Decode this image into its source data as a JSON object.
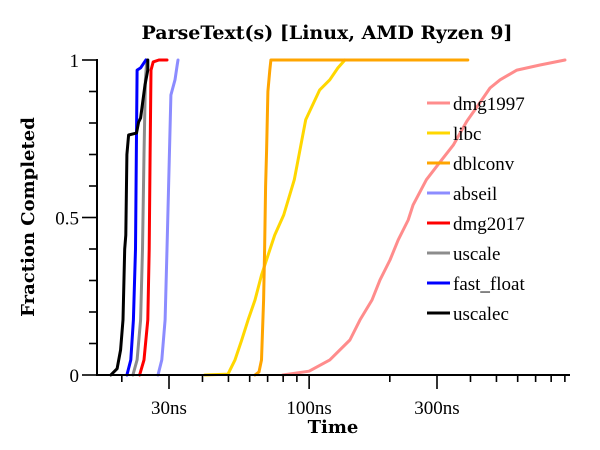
{
  "chart_data": {
    "type": "line",
    "title": "ParseText(s) [Linux, AMD Ryzen 9]",
    "xlabel": "Time",
    "ylabel": "Fraction Completed",
    "xscale": "log",
    "xunit": "ns",
    "xlim": [
      16.2,
      932
    ],
    "ylim": [
      0,
      1
    ],
    "x_major_ticks": [
      {
        "value": 30,
        "label": "30ns"
      },
      {
        "value": 100,
        "label": "100ns"
      },
      {
        "value": 300,
        "label": "300ns"
      }
    ],
    "x_minor_ticks": [
      20,
      40,
      50,
      60,
      70,
      80,
      90,
      200,
      400,
      500,
      600,
      700,
      800,
      900
    ],
    "y_major_ticks": [
      {
        "value": 0,
        "label": "0"
      },
      {
        "value": 0.5,
        "label": "0.5"
      },
      {
        "value": 1,
        "label": "1"
      }
    ],
    "y_minor_ticks": [
      0.1,
      0.2,
      0.3,
      0.4,
      0.6,
      0.7,
      0.8,
      0.9
    ],
    "grid": false,
    "legend_position": "right",
    "series": [
      {
        "name": "dmg1997",
        "color": "#ff8c8c",
        "points": [
          [
            79.7,
            0
          ],
          [
            100,
            0.012
          ],
          [
            119.4,
            0.048
          ],
          [
            142,
            0.111
          ],
          [
            154.8,
            0.175
          ],
          [
            171.6,
            0.238
          ],
          [
            183.8,
            0.302
          ],
          [
            200.4,
            0.365
          ],
          [
            214.9,
            0.429
          ],
          [
            234.2,
            0.492
          ],
          [
            244.4,
            0.54
          ],
          [
            274,
            0.62
          ],
          [
            307.8,
            0.676
          ],
          [
            345,
            0.73
          ],
          [
            388,
            0.806
          ],
          [
            430,
            0.86
          ],
          [
            473,
            0.911
          ],
          [
            516,
            0.937
          ],
          [
            596,
            0.968
          ],
          [
            727,
            0.984
          ],
          [
            901,
            1
          ]
        ]
      },
      {
        "name": "libc",
        "color": "#ffd700",
        "points": [
          [
            40.8,
            0
          ],
          [
            49.8,
            0.003
          ],
          [
            52.9,
            0.048
          ],
          [
            56,
            0.11
          ],
          [
            59.2,
            0.175
          ],
          [
            62.8,
            0.238
          ],
          [
            66.4,
            0.317
          ],
          [
            71.3,
            0.397
          ],
          [
            74.4,
            0.444
          ],
          [
            80.4,
            0.508
          ],
          [
            88,
            0.62
          ],
          [
            97.1,
            0.81
          ],
          [
            109.5,
            0.905
          ],
          [
            119.4,
            0.937
          ],
          [
            128,
            0.975
          ],
          [
            136,
            1
          ]
        ]
      },
      {
        "name": "dblconv",
        "color": "#ffa500",
        "points": [
          [
            62.8,
            0
          ],
          [
            65,
            0.01
          ],
          [
            66.4,
            0.048
          ],
          [
            67.6,
            0.238
          ],
          [
            68.2,
            0.397
          ],
          [
            68.8,
            0.6
          ],
          [
            69.4,
            0.714
          ],
          [
            70.2,
            0.9
          ],
          [
            71.3,
            0.968
          ],
          [
            72,
            1
          ],
          [
            391,
            1
          ]
        ]
      },
      {
        "name": "abseil",
        "color": "#8c8cff",
        "points": [
          [
            27.3,
            0
          ],
          [
            28.2,
            0.048
          ],
          [
            29.0,
            0.175
          ],
          [
            29.5,
            0.4
          ],
          [
            29.9,
            0.6
          ],
          [
            30.5,
            0.889
          ],
          [
            31.6,
            0.937
          ],
          [
            32.2,
            0.984
          ],
          [
            32.4,
            1
          ]
        ]
      },
      {
        "name": "dmg2017",
        "color": "#ff0000",
        "points": [
          [
            23.3,
            0
          ],
          [
            24.2,
            0.048
          ],
          [
            25.0,
            0.175
          ],
          [
            25.3,
            0.4
          ],
          [
            25.5,
            0.7
          ],
          [
            25.7,
            0.968
          ],
          [
            26.2,
            0.994
          ],
          [
            27.5,
            1
          ],
          [
            29.5,
            1
          ]
        ]
      },
      {
        "name": "uscale",
        "color": "#8c8c8c",
        "points": [
          [
            22.0,
            0
          ],
          [
            22.8,
            0.048
          ],
          [
            23.5,
            0.175
          ],
          [
            23.9,
            0.4
          ],
          [
            24.2,
            0.7
          ],
          [
            24.5,
            0.937
          ],
          [
            24.8,
            1
          ]
        ]
      },
      {
        "name": "fast_float",
        "color": "#0000ff",
        "points": [
          [
            20.9,
            0
          ],
          [
            21.6,
            0.048
          ],
          [
            22.1,
            0.175
          ],
          [
            22.5,
            0.4
          ],
          [
            22.7,
            0.762
          ],
          [
            22.8,
            0.968
          ],
          [
            23.5,
            0.975
          ],
          [
            24.6,
            1
          ]
        ]
      },
      {
        "name": "uscalec",
        "color": "#000000",
        "points": [
          [
            18.2,
            0
          ],
          [
            19.2,
            0.02
          ],
          [
            19.8,
            0.08
          ],
          [
            20.2,
            0.175
          ],
          [
            20.5,
            0.4
          ],
          [
            20.7,
            0.444
          ],
          [
            20.9,
            0.7
          ],
          [
            21.2,
            0.762
          ],
          [
            22.7,
            0.768
          ],
          [
            23.1,
            0.803
          ],
          [
            23.5,
            0.816
          ],
          [
            24.0,
            0.873
          ],
          [
            24.4,
            0.921
          ],
          [
            25.0,
            0.968
          ],
          [
            25.0,
            1
          ]
        ]
      }
    ]
  }
}
